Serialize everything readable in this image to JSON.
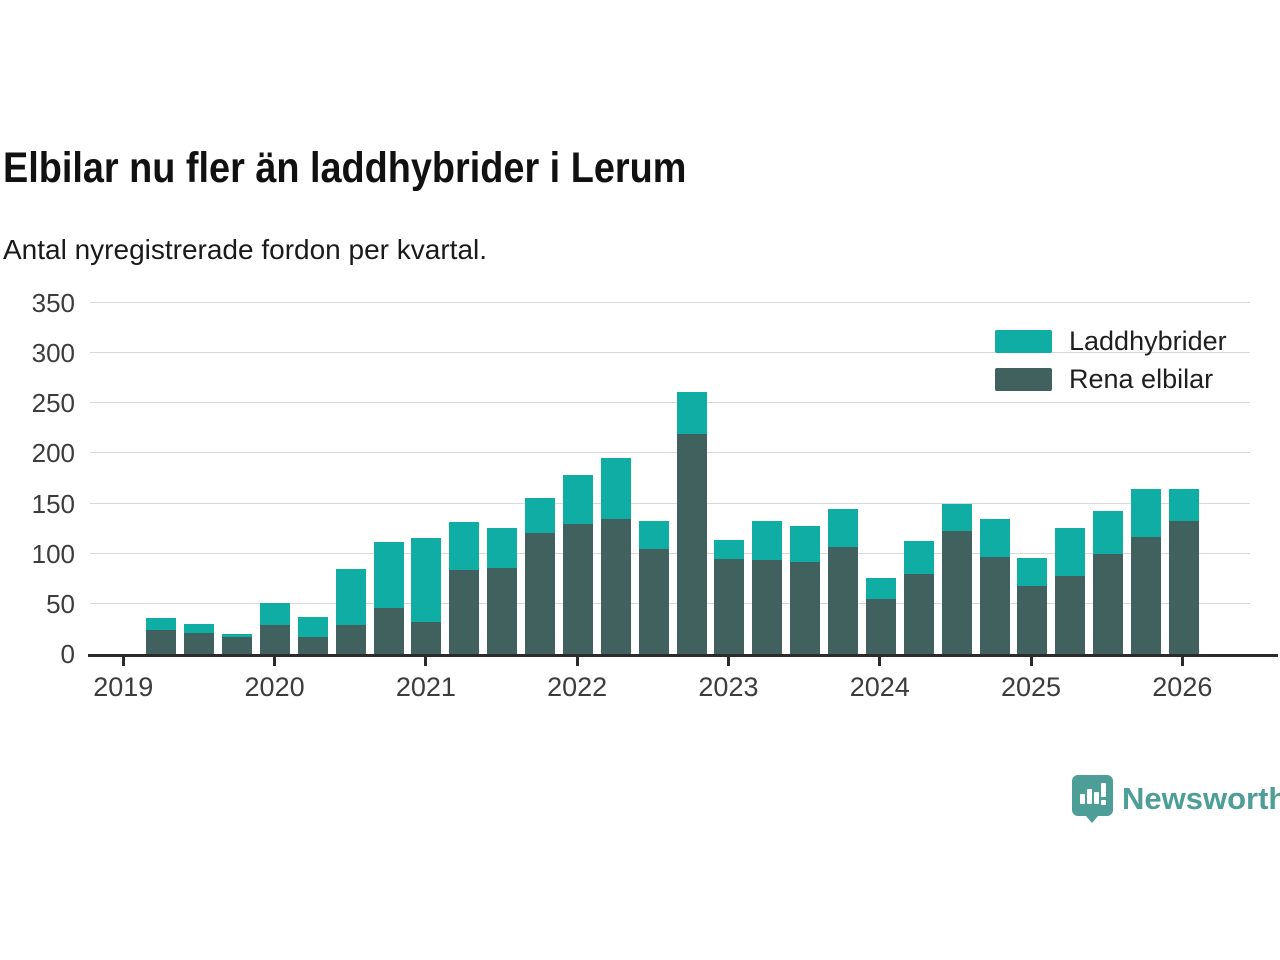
{
  "header": {
    "title": "Elbilar nu fler än laddhybrider i Lerum",
    "subtitle": "Antal nyregistrerade fordon per kvartal."
  },
  "colors": {
    "laddhybrider": "#0fada3",
    "rena_elbilar": "#40615e",
    "axis": "#2b2b2b",
    "gridline": "#d9d9d9",
    "brand_teal": "#4d9e96"
  },
  "legend": {
    "items": [
      {
        "label": "Laddhybrider",
        "color": "#0fada3"
      },
      {
        "label": "Rena elbilar",
        "color": "#40615e"
      }
    ]
  },
  "chart_data": {
    "type": "bar",
    "stacked": true,
    "title": "Elbilar nu fler än laddhybrider i Lerum",
    "subtitle": "Antal nyregistrerade fordon per kvartal.",
    "xlabel": "",
    "ylabel": "",
    "ylim": [
      0,
      350
    ],
    "y_ticks": [
      0,
      50,
      100,
      150,
      200,
      250,
      300,
      350
    ],
    "x_year_labels": [
      "2019",
      "2020",
      "2021",
      "2022",
      "2023",
      "2024",
      "2025",
      "2026"
    ],
    "grid": true,
    "legend_position": "top-right",
    "quarters": [
      "2019 Q2",
      "2019 Q3",
      "2019 Q4",
      "2020 Q1",
      "2020 Q2",
      "2020 Q3",
      "2020 Q4",
      "2021 Q1",
      "2021 Q2",
      "2021 Q3",
      "2021 Q4",
      "2022 Q1",
      "2022 Q2",
      "2022 Q3",
      "2022 Q4",
      "2023 Q1",
      "2023 Q2",
      "2023 Q3",
      "2023 Q4",
      "2024 Q1",
      "2024 Q2",
      "2024 Q3",
      "2024 Q4",
      "2025 Q1",
      "2025 Q2",
      "2025 Q3",
      "2025 Q4",
      "2026 Q1"
    ],
    "series": [
      {
        "name": "Rena elbilar",
        "color": "#40615e",
        "values": [
          24,
          21,
          17,
          29,
          17,
          29,
          46,
          32,
          84,
          86,
          121,
          130,
          135,
          105,
          219,
          95,
          94,
          92,
          107,
          55,
          80,
          123,
          97,
          68,
          78,
          100,
          117,
          133
        ]
      },
      {
        "name": "Laddhybrider",
        "color": "#0fada3",
        "values": [
          12,
          9,
          3,
          22,
          20,
          56,
          66,
          84,
          48,
          40,
          35,
          49,
          60,
          28,
          42,
          19,
          39,
          36,
          38,
          21,
          33,
          27,
          38,
          28,
          48,
          43,
          48,
          32
        ]
      }
    ]
  },
  "brand": {
    "name": "Newsworthy"
  }
}
